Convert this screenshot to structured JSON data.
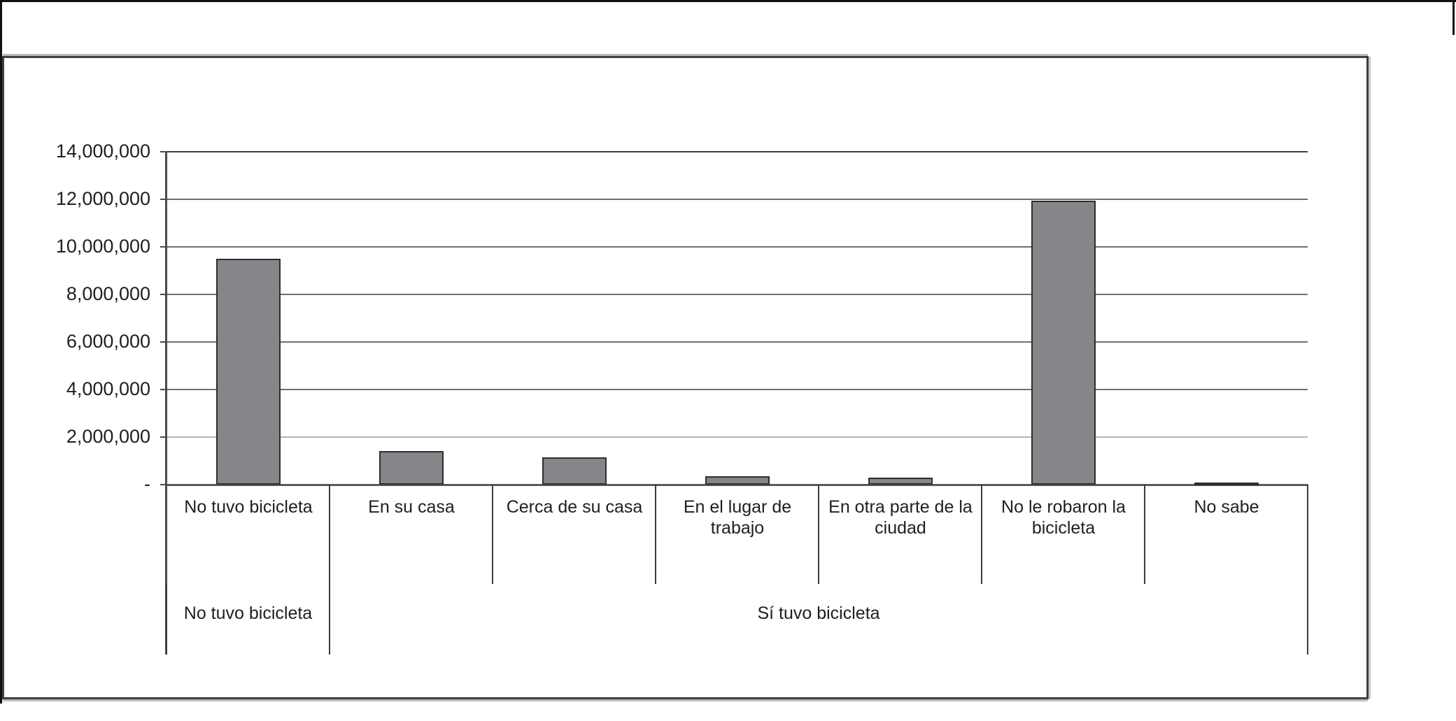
{
  "chart_data": {
    "type": "bar",
    "title": "",
    "xlabel": "",
    "ylabel": "",
    "categories": [
      "No tuvo bicicleta",
      "En su casa",
      "Cerca de su casa",
      "En el lugar de trabajo",
      "En otra parte de la ciudad",
      "No le robaron la bicicleta",
      "No sabe"
    ],
    "values": [
      9500000,
      1400000,
      1150000,
      350000,
      300000,
      11950000,
      100000
    ],
    "group_labels": [
      {
        "label": "No tuvo bicicleta",
        "span": 1
      },
      {
        "label": "Sí tuvo bicicleta",
        "span": 6
      }
    ],
    "y_ticks": [
      {
        "value": 14000000,
        "label": "14,000,000"
      },
      {
        "value": 12000000,
        "label": "12,000,000"
      },
      {
        "value": 10000000,
        "label": "10,000,000"
      },
      {
        "value": 8000000,
        "label": "8,000,000"
      },
      {
        "value": 6000000,
        "label": "6,000,000"
      },
      {
        "value": 4000000,
        "label": "4,000,000"
      },
      {
        "value": 2000000,
        "label": "2,000,000"
      },
      {
        "value": 0,
        "label": "-"
      }
    ],
    "ylim": [
      0,
      14000000
    ],
    "grid": true,
    "legend": false,
    "bar_color": "#84868a",
    "bar_border_color": "#2e2e2e",
    "gridline_color": "#707070",
    "top_gridline_color": "#3f3f3f",
    "light_gridline_color": "#b4b4b4",
    "axis_color": "#5a5a5a"
  }
}
